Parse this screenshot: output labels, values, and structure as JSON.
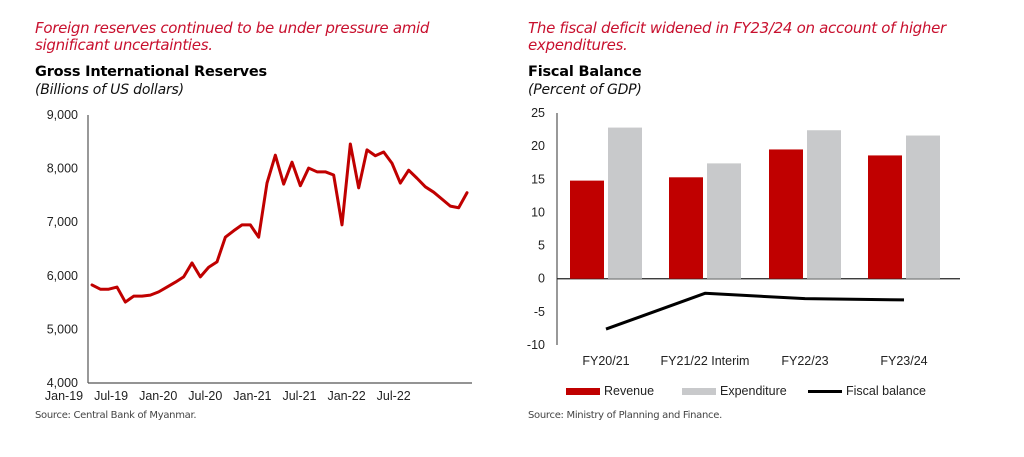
{
  "left": {
    "headline": "Foreign reserves continued to be under pressure amid significant uncertainties.",
    "title": "Gross International Reserves",
    "subtitle": "(Billions of US dollars)",
    "source": "Source: Central Bank of Myanmar."
  },
  "right": {
    "headline": "The fiscal deficit widened in FY23/24 on account of higher expenditures.",
    "title": "Fiscal Balance",
    "subtitle": "(Percent of GDP)",
    "source": "Source: Ministry of Planning and Finance.",
    "legend": [
      "Revenue",
      "Expenditure",
      "Fiscal balance"
    ]
  },
  "colors": {
    "headline": "#c8102e",
    "reserves_line": "#c00000",
    "revenue": "#c00000",
    "expenditure": "#c8c9cb",
    "fiscal_balance": "#000000",
    "axis": "#555555"
  },
  "chart_data": [
    {
      "type": "line",
      "title": "Gross International Reserves",
      "subtitle": "(Billions of US dollars)",
      "xlabel": "",
      "ylabel": "",
      "ylim": [
        4000,
        9000
      ],
      "yticks": [
        "4,000",
        "5,000",
        "6,000",
        "7,000",
        "8,000",
        "9,000"
      ],
      "ytick_values": [
        4000,
        5000,
        6000,
        7000,
        8000,
        9000
      ],
      "xtick_labels": [
        "Jan-19",
        "Jul-19",
        "Jan-20",
        "Jul-20",
        "Jan-21",
        "Jul-21",
        "Jan-22",
        "Jul-22"
      ],
      "xtick_month_index": [
        0,
        6,
        12,
        18,
        24,
        30,
        36,
        42
      ],
      "grid": false,
      "legend": "none",
      "series": [
        {
          "name": "Gross International Reserves",
          "x_start": "Jan-19",
          "frequency": "monthly",
          "values": [
            5830,
            5750,
            5750,
            5790,
            5510,
            5620,
            5620,
            5640,
            5700,
            5790,
            5880,
            5980,
            6240,
            5980,
            6160,
            6260,
            6720,
            6840,
            6950,
            6950,
            6720,
            7730,
            8250,
            7710,
            8120,
            7680,
            8010,
            7940,
            7940,
            7880,
            6950,
            8460,
            7640,
            8350,
            8240,
            8310,
            8100,
            7730,
            7970,
            7820,
            7660,
            7560,
            7430,
            7300,
            7270,
            7550
          ]
        }
      ]
    },
    {
      "type": "bar",
      "title": "Fiscal Balance",
      "subtitle": "(Percent of GDP)",
      "xlabel": "",
      "ylabel": "",
      "ylim": [
        -10,
        25
      ],
      "yticks": [
        "-10",
        "-5",
        "0",
        "5",
        "10",
        "15",
        "20",
        "25"
      ],
      "ytick_values": [
        -10,
        -5,
        0,
        5,
        10,
        15,
        20,
        25
      ],
      "categories": [
        "FY20/21",
        "FY21/22 Interim",
        "FY22/23",
        "FY23/24"
      ],
      "grid": false,
      "legend": "bottom",
      "series": [
        {
          "name": "Revenue",
          "kind": "bar",
          "values": [
            14.8,
            15.3,
            19.5,
            18.6
          ]
        },
        {
          "name": "Expenditure",
          "kind": "bar",
          "values": [
            22.8,
            17.4,
            22.4,
            21.6
          ]
        },
        {
          "name": "Fiscal balance",
          "kind": "line",
          "values": [
            -7.6,
            -2.2,
            -3.0,
            -3.2
          ]
        }
      ]
    }
  ]
}
